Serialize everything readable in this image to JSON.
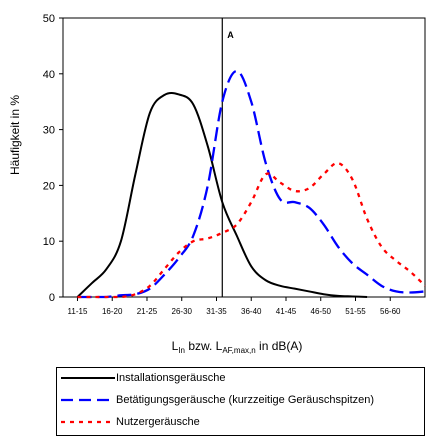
{
  "chart_data": {
    "type": "line",
    "ylabel": "Häufigkeit in %",
    "xlabel_parts": {
      "main": "L",
      "sub1": "In",
      "mid": " bzw. L",
      "sub2": "AF,max,n",
      "tail": " in dB(A)"
    },
    "categories": [
      "11-15",
      "16-20",
      "21-25",
      "26-30",
      "31-35",
      "36-40",
      "41-45",
      "46-50",
      "51-55",
      "56-60"
    ],
    "y_ticks": [
      "0",
      "10",
      "20",
      "30",
      "40",
      "50"
    ],
    "ylim": [
      0,
      50
    ],
    "grid": false,
    "legend_position": "bottom",
    "annotation": {
      "label": "A",
      "x": 5.5
    },
    "series": [
      {
        "name": "Installationsgeräusche",
        "color": "#000000",
        "dash": "solid",
        "points": [
          [
            0.5,
            0
          ],
          [
            1,
            2.5
          ],
          [
            1.5,
            5
          ],
          [
            2,
            10
          ],
          [
            2.5,
            22
          ],
          [
            3,
            33
          ],
          [
            3.5,
            36.2
          ],
          [
            4,
            36.3
          ],
          [
            4.5,
            34.5
          ],
          [
            5,
            27
          ],
          [
            5.5,
            17
          ],
          [
            6,
            11
          ],
          [
            6.5,
            5.5
          ],
          [
            7,
            3
          ],
          [
            7.5,
            2
          ],
          [
            8,
            1.5
          ],
          [
            8.5,
            1
          ],
          [
            9,
            0.5
          ],
          [
            9.5,
            0.2
          ],
          [
            10,
            0.1
          ],
          [
            10.5,
            0
          ]
        ]
      },
      {
        "name": "Betätigungsgeräusche (kurzzeitige Geräuschspitzen)",
        "color": "#0000ff",
        "dash": "long",
        "points": [
          [
            0.5,
            0
          ],
          [
            1,
            0
          ],
          [
            1.5,
            0
          ],
          [
            2,
            0.3
          ],
          [
            2.5,
            0.5
          ],
          [
            3,
            1.5
          ],
          [
            3.5,
            4
          ],
          [
            4,
            7
          ],
          [
            4.5,
            11
          ],
          [
            5,
            20
          ],
          [
            5.5,
            35
          ],
          [
            6,
            40.5
          ],
          [
            6.5,
            35
          ],
          [
            7,
            24
          ],
          [
            7.5,
            17.5
          ],
          [
            8,
            17
          ],
          [
            8.5,
            16
          ],
          [
            9,
            13
          ],
          [
            9.5,
            9
          ],
          [
            10,
            6
          ],
          [
            10.5,
            4
          ],
          [
            11,
            2
          ],
          [
            11.5,
            1
          ],
          [
            12,
            0.8
          ],
          [
            12.5,
            1
          ]
        ]
      },
      {
        "name": "Nutzergeräusche",
        "color": "#ff0000",
        "dash": "short",
        "points": [
          [
            0.5,
            0
          ],
          [
            1,
            0
          ],
          [
            1.5,
            0
          ],
          [
            2,
            0
          ],
          [
            2.5,
            0.5
          ],
          [
            3,
            2
          ],
          [
            3.5,
            5
          ],
          [
            4,
            8
          ],
          [
            4.5,
            10
          ],
          [
            5,
            10.5
          ],
          [
            5.5,
            11.5
          ],
          [
            6,
            13
          ],
          [
            6.5,
            17
          ],
          [
            7,
            22
          ],
          [
            7.5,
            20.5
          ],
          [
            8,
            19
          ],
          [
            8.5,
            19.5
          ],
          [
            9,
            22
          ],
          [
            9.5,
            24
          ],
          [
            10,
            21
          ],
          [
            10.5,
            14
          ],
          [
            11,
            9
          ],
          [
            11.5,
            6.5
          ],
          [
            12,
            4.5
          ],
          [
            12.5,
            2
          ]
        ]
      }
    ]
  }
}
